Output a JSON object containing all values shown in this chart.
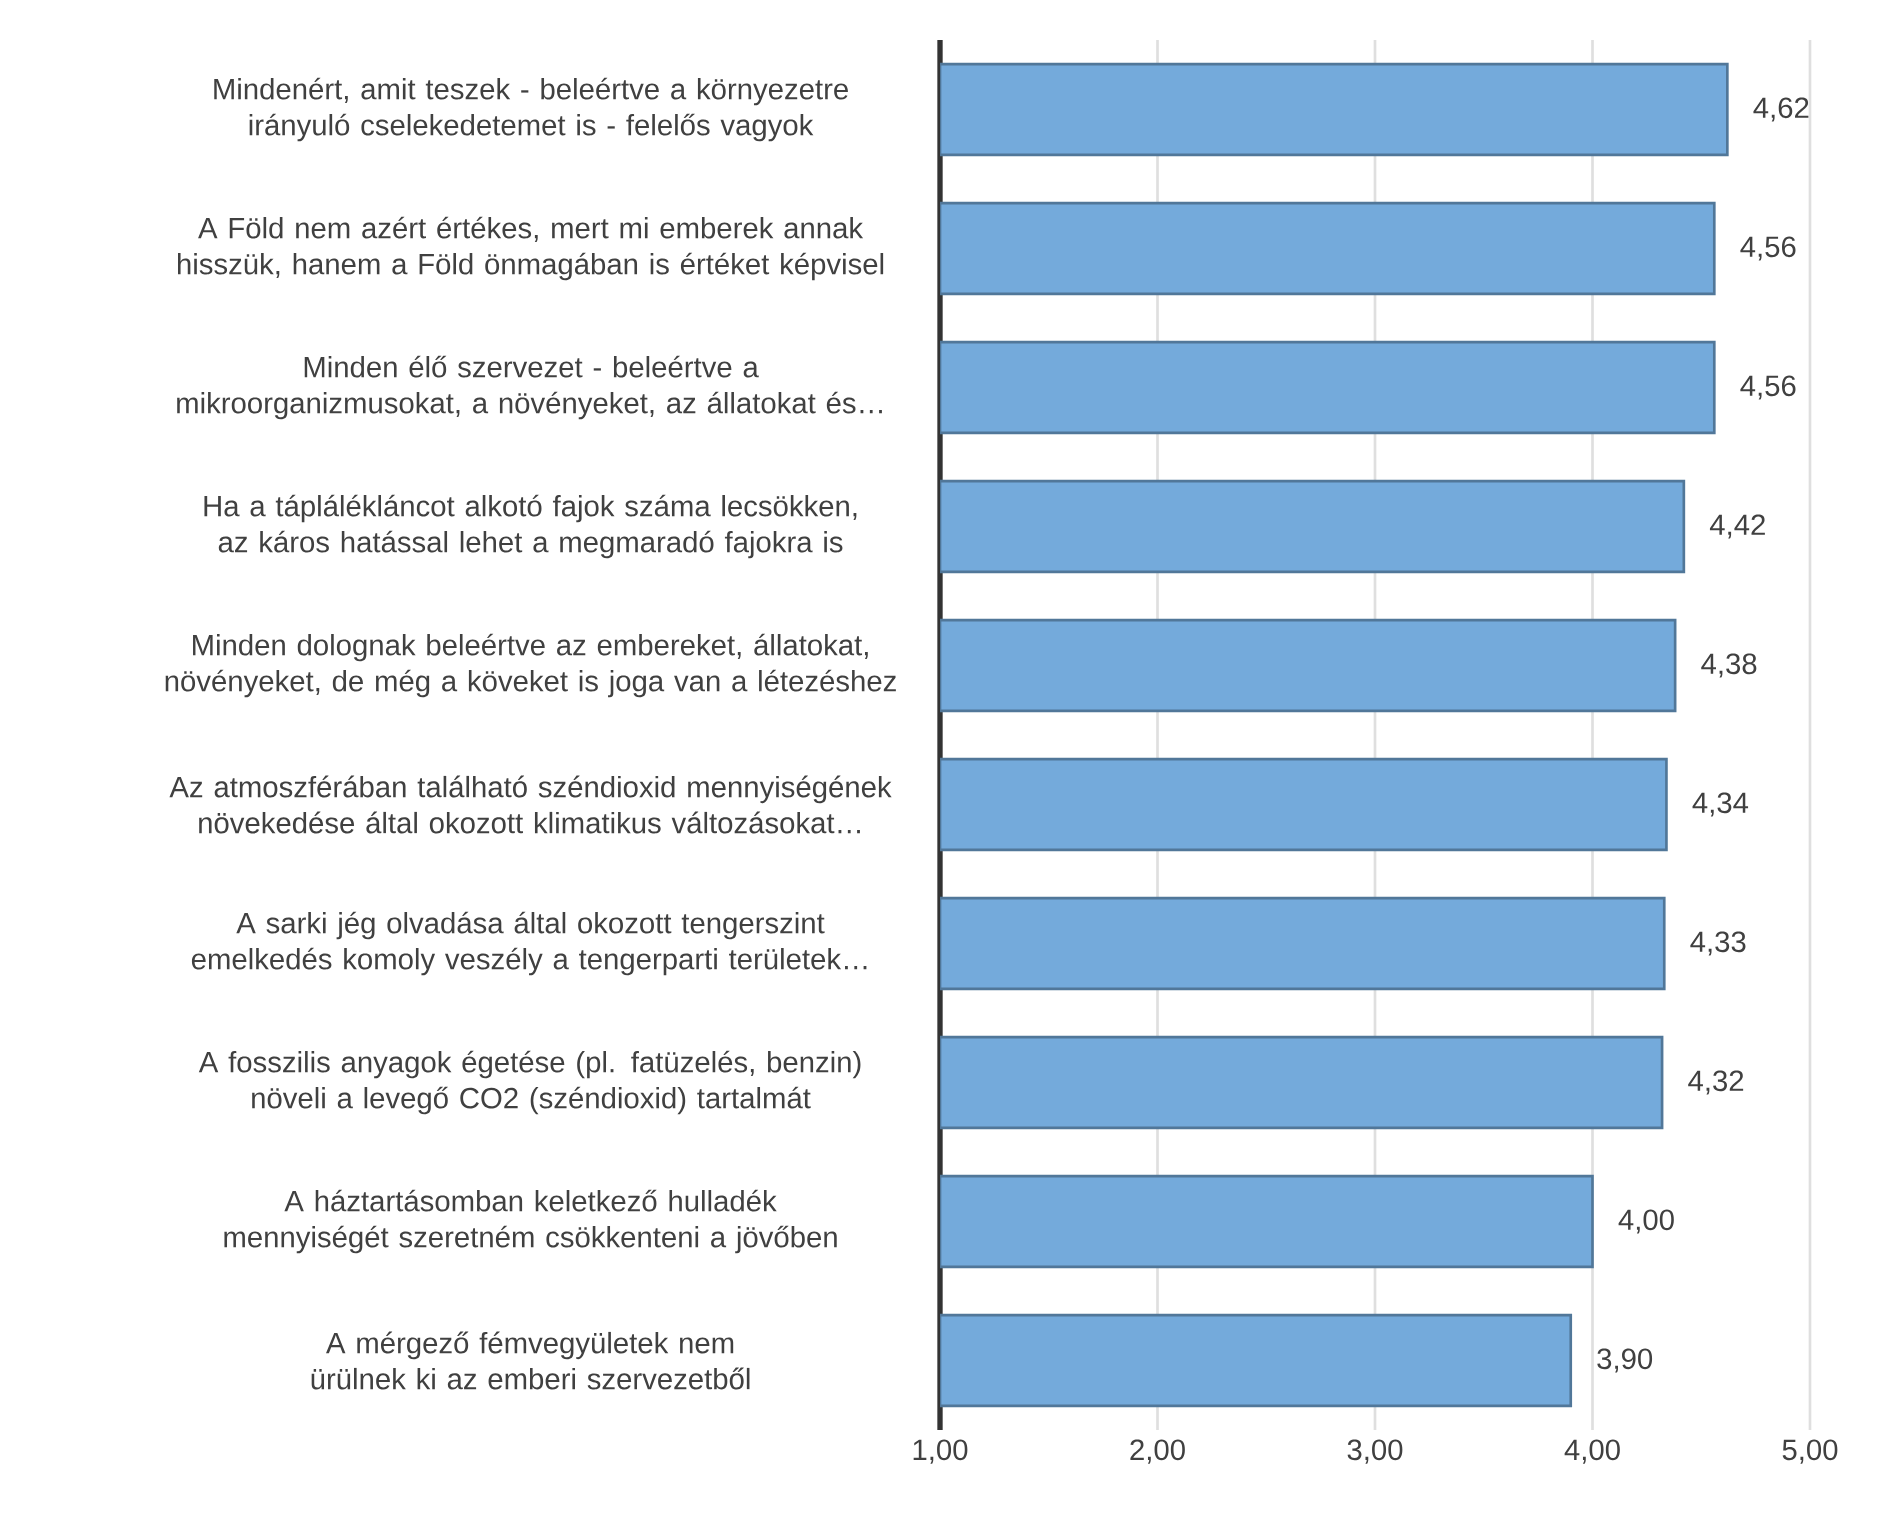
{
  "chart_data": {
    "type": "bar",
    "orientation": "horizontal",
    "categories": [
      "Mindenért, amit teszek - beleértve a környezetre irányuló cselekedetemet is - felelős vagyok",
      "A Föld nem azért értékes, mert mi emberek annak hisszük, hanem a Föld önmagában is értéket képvisel",
      "Minden élő szervezet - beleértve a mikroorganizmusokat, a növényeket, az állatokat és…",
      "Ha a táplálékláncot alkotó fajok száma lecsökken, az káros hatással lehet a megmaradó fajokra is",
      "Minden dolognak beleértve az embereket, állatokat, növényeket, de még a köveket is joga van a létezéshez",
      "Az atmoszférában található széndioxid mennyiségének növekedése által okozott klimatikus változásokat…",
      "A sarki jég olvadása által okozott tengerszint emelkedés komoly veszély a tengerparti területek…",
      "A fosszilis anyagok égetése (pl. fatüzelés, benzin) növeli a levegő CO2 (széndioxid) tartalmát",
      "A háztartásomban keletkező hulladék mennyiségét szeretném csökkenteni a jövőben",
      "A mérgező fémvegyületek nem ürülnek ki az emberi szervezetből"
    ],
    "values": [
      4.62,
      4.56,
      4.56,
      4.42,
      4.38,
      4.34,
      4.33,
      4.32,
      4.0,
      3.9
    ],
    "value_labels": [
      "4,62",
      "4,56",
      "4,56",
      "4,42",
      "4,38",
      "4,34",
      "4,33",
      "4,32",
      "4,00",
      "3,90"
    ],
    "color": "#74aadb",
    "xlim": [
      1,
      5
    ],
    "xticks": [
      {
        "value": 1,
        "label": "1,00"
      },
      {
        "value": 2,
        "label": "2,00"
      },
      {
        "value": 3,
        "label": "3,00"
      },
      {
        "value": 4,
        "label": "4,00"
      },
      {
        "value": 5,
        "label": "5,00"
      }
    ],
    "grid": "x"
  }
}
